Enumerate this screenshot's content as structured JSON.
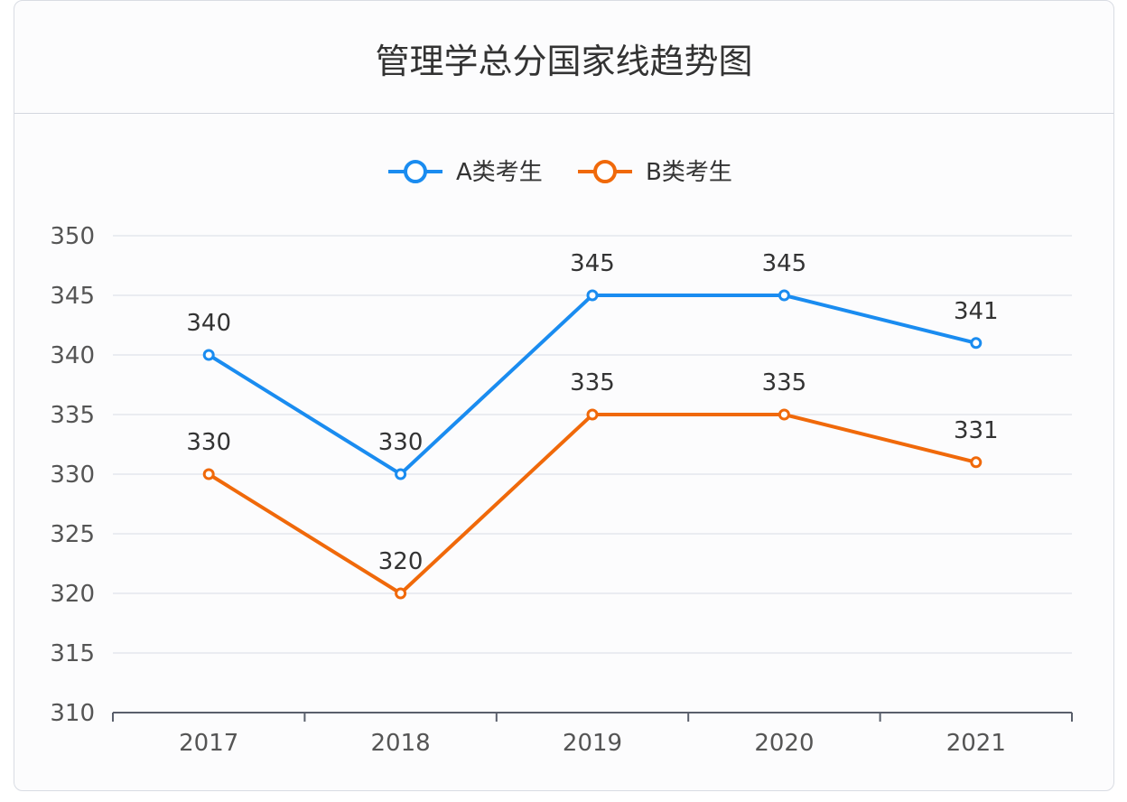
{
  "chart_data": {
    "type": "line",
    "title": "管理学总分国家线趋势图",
    "categories": [
      "2017",
      "2018",
      "2019",
      "2020",
      "2021"
    ],
    "series": [
      {
        "name": "A类考生",
        "values": [
          340,
          330,
          345,
          345,
          341
        ],
        "color": "#1a8cf0"
      },
      {
        "name": "B类考生",
        "values": [
          330,
          320,
          335,
          335,
          331
        ],
        "color": "#f0690a"
      }
    ],
    "ylim": [
      310,
      350
    ],
    "yticks": [
      310,
      315,
      320,
      325,
      330,
      335,
      340,
      345,
      350
    ],
    "grid": true,
    "legend": "top-center",
    "data_labels": true
  }
}
